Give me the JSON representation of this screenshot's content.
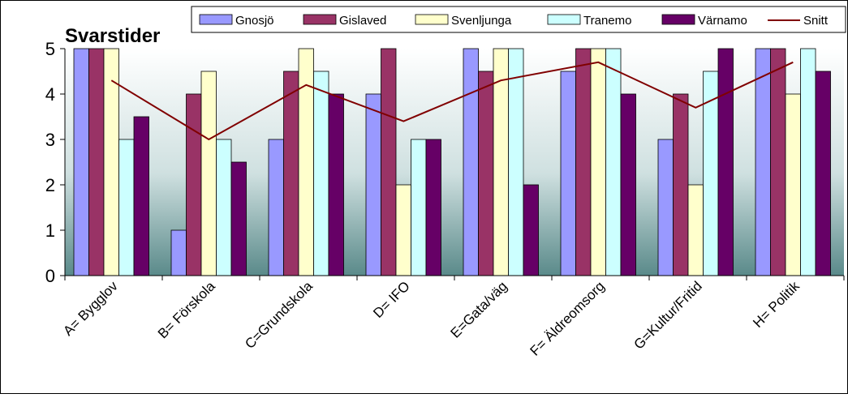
{
  "chart_data": {
    "type": "bar",
    "title": "Svarstider",
    "categories": [
      "A= Bygglov",
      "B= Förskola",
      "C=Grundskola",
      "D= IFO",
      "E=Gata/väg",
      "F= Äldreomsorg",
      "G=Kultur/Fritid",
      "H= Politik"
    ],
    "series": [
      {
        "name": "Gnosjö",
        "color": "#9999FF",
        "values": [
          5,
          1,
          3,
          4,
          5,
          4.5,
          3,
          5
        ]
      },
      {
        "name": "Gislaved",
        "color": "#993366",
        "values": [
          5,
          4,
          4.5,
          5,
          4.5,
          5,
          4,
          5
        ]
      },
      {
        "name": "Svenljunga",
        "color": "#FFFFCC",
        "values": [
          5,
          4.5,
          5,
          2,
          5,
          5,
          2,
          4
        ]
      },
      {
        "name": "Tranemo",
        "color": "#CCFFFF",
        "values": [
          3,
          3,
          4.5,
          3,
          5,
          5,
          4.5,
          5
        ]
      },
      {
        "name": "Värnamo",
        "color": "#660066",
        "values": [
          3.5,
          2.5,
          4,
          3,
          2,
          4,
          5,
          4.5
        ]
      }
    ],
    "line_series": {
      "name": "Snitt",
      "color": "#800000",
      "values": [
        4.3,
        3.0,
        4.2,
        3.4,
        4.3,
        4.7,
        3.7,
        4.7
      ]
    },
    "ylim": [
      0,
      5
    ],
    "yticks": [
      "0",
      "1",
      "2",
      "3",
      "4",
      "5"
    ],
    "grid": false,
    "legend_position": "top"
  }
}
